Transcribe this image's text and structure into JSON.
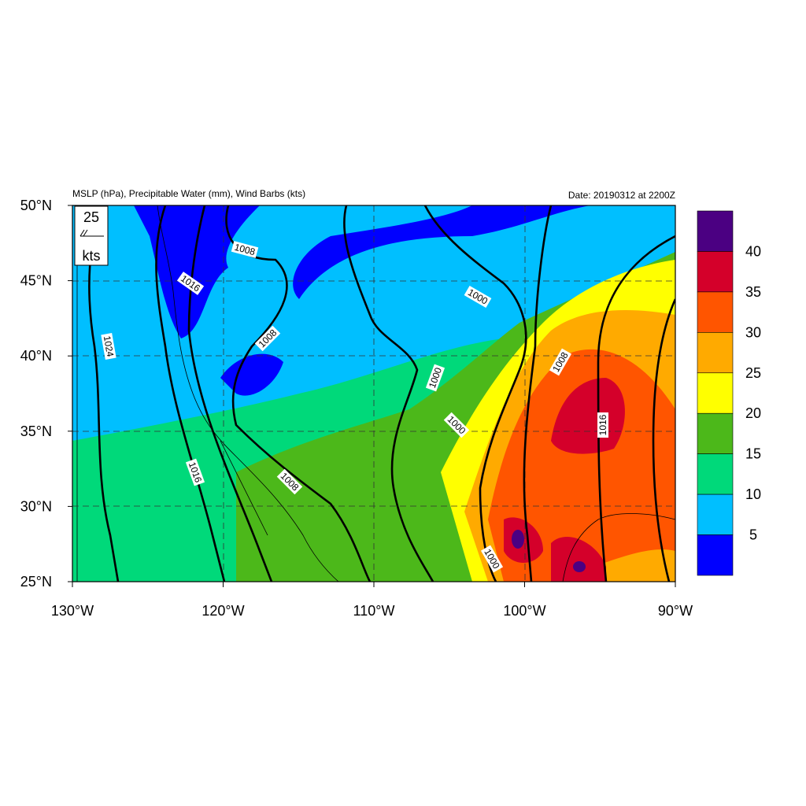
{
  "header": {
    "title": "MSLP (hPa), Precipitable Water (mm), Wind Barbs (kts)",
    "date": "Date: 20190312 at 2200Z"
  },
  "map": {
    "lat_labels": [
      "50°N",
      "45°N",
      "40°N",
      "35°N",
      "30°N",
      "25°N"
    ],
    "lon_labels": [
      "130°W",
      "120°W",
      "110°W",
      "100°W",
      "90°W"
    ],
    "contour_labels": [
      "1008",
      "1016",
      "1024",
      "1008",
      "1000",
      "1000",
      "1008",
      "1000",
      "1016",
      "1016",
      "1008",
      "1000"
    ],
    "wind_legend": {
      "speed": "25",
      "unit": "kts"
    }
  },
  "colorbar": {
    "labels": [
      "40",
      "35",
      "30",
      "25",
      "20",
      "15",
      "10",
      "5"
    ]
  }
}
